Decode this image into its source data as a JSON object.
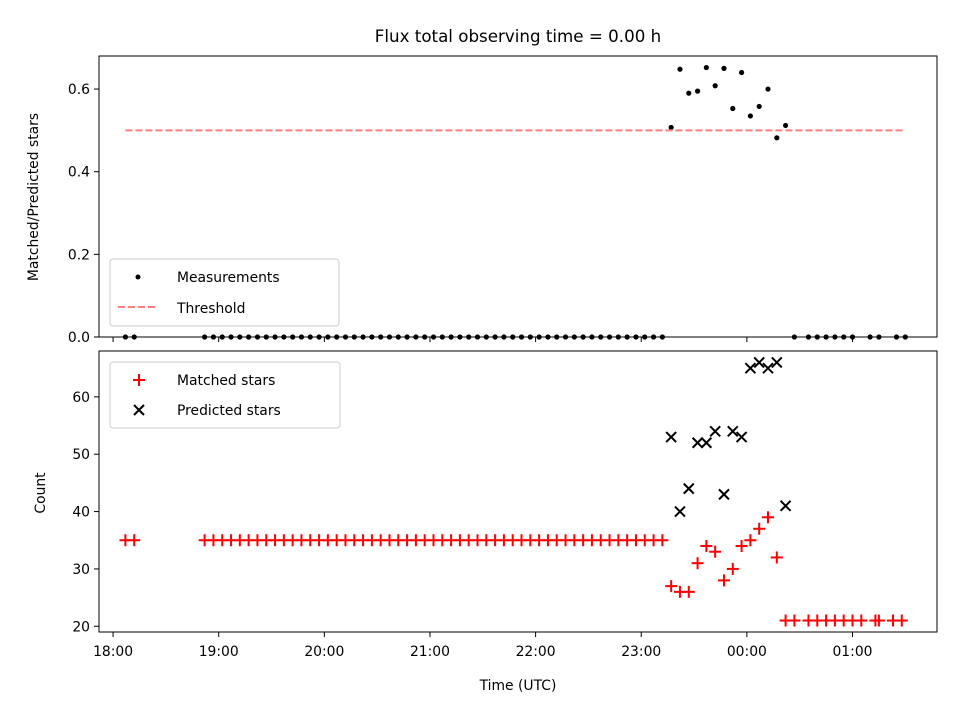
{
  "chart_data": [
    {
      "type": "scatter",
      "title": "Flux total observing time = 0.00 h",
      "ylabel": "Matched/Predicted stars",
      "xlabel": "",
      "ylim": [
        0,
        0.68
      ],
      "yticks": [
        "0.0",
        "0.2",
        "0.4",
        "0.6"
      ],
      "ytick_values": [
        0.0,
        0.2,
        0.4,
        0.6
      ],
      "xlim": [
        "17:52",
        "01:48"
      ],
      "legend_position": "lower-left",
      "series": [
        {
          "name": "Measurements",
          "marker": "dot",
          "color": "#000000",
          "points": [
            [
              "18:07",
              0
            ],
            [
              "18:12",
              0
            ],
            [
              "18:52",
              0
            ],
            [
              "18:57",
              0
            ],
            [
              "19:02",
              0
            ],
            [
              "19:07",
              0
            ],
            [
              "19:12",
              0
            ],
            [
              "19:17",
              0
            ],
            [
              "19:22",
              0
            ],
            [
              "19:27",
              0
            ],
            [
              "19:32",
              0
            ],
            [
              "19:37",
              0
            ],
            [
              "19:42",
              0
            ],
            [
              "19:47",
              0
            ],
            [
              "19:52",
              0
            ],
            [
              "19:57",
              0
            ],
            [
              "20:02",
              0
            ],
            [
              "20:07",
              0
            ],
            [
              "20:12",
              0
            ],
            [
              "20:17",
              0
            ],
            [
              "20:22",
              0
            ],
            [
              "20:27",
              0
            ],
            [
              "20:32",
              0
            ],
            [
              "20:37",
              0
            ],
            [
              "20:42",
              0
            ],
            [
              "20:47",
              0
            ],
            [
              "20:52",
              0
            ],
            [
              "20:57",
              0
            ],
            [
              "21:02",
              0
            ],
            [
              "21:07",
              0
            ],
            [
              "21:12",
              0
            ],
            [
              "21:17",
              0
            ],
            [
              "21:22",
              0
            ],
            [
              "21:27",
              0
            ],
            [
              "21:32",
              0
            ],
            [
              "21:37",
              0
            ],
            [
              "21:42",
              0
            ],
            [
              "21:47",
              0
            ],
            [
              "21:52",
              0
            ],
            [
              "21:57",
              0
            ],
            [
              "22:02",
              0
            ],
            [
              "22:07",
              0
            ],
            [
              "22:12",
              0
            ],
            [
              "22:17",
              0
            ],
            [
              "22:22",
              0
            ],
            [
              "22:27",
              0
            ],
            [
              "22:32",
              0
            ],
            [
              "22:37",
              0
            ],
            [
              "22:42",
              0
            ],
            [
              "22:47",
              0
            ],
            [
              "22:52",
              0
            ],
            [
              "22:57",
              0
            ],
            [
              "23:02",
              0
            ],
            [
              "23:07",
              0
            ],
            [
              "23:12",
              0
            ],
            [
              "23:17",
              0.507
            ],
            [
              "23:22",
              0.648
            ],
            [
              "23:27",
              0.59
            ],
            [
              "23:32",
              0.595
            ],
            [
              "23:37",
              0.652
            ],
            [
              "23:42",
              0.608
            ],
            [
              "23:47",
              0.65
            ],
            [
              "23:52",
              0.553
            ],
            [
              "23:57",
              0.64
            ],
            [
              "00:02",
              0.535
            ],
            [
              "00:07",
              0.558
            ],
            [
              "00:12",
              0.6
            ],
            [
              "00:17",
              0.482
            ],
            [
              "00:22",
              0.512
            ],
            [
              "00:27",
              0
            ],
            [
              "00:35",
              0
            ],
            [
              "00:40",
              0
            ],
            [
              "00:45",
              0
            ],
            [
              "00:50",
              0
            ],
            [
              "00:55",
              0
            ],
            [
              "01:00",
              0
            ],
            [
              "01:10",
              0
            ],
            [
              "01:15",
              0
            ],
            [
              "01:25",
              0
            ],
            [
              "01:30",
              0
            ]
          ]
        },
        {
          "name": "Threshold",
          "marker": "dashed-line",
          "color": "#ff7f7f",
          "points": [
            [
              "18:07",
              0.5
            ],
            [
              "01:30",
              0.5
            ]
          ]
        }
      ]
    },
    {
      "type": "scatter",
      "title": "",
      "ylabel": "Count",
      "xlabel": "Time (UTC)",
      "ylim": [
        19,
        68
      ],
      "yticks": [
        "20",
        "30",
        "40",
        "50",
        "60"
      ],
      "ytick_values": [
        20,
        30,
        40,
        50,
        60
      ],
      "xlim": [
        "17:52",
        "01:48"
      ],
      "xticks": [
        "18:00",
        "19:00",
        "20:00",
        "21:00",
        "22:00",
        "23:00",
        "00:00",
        "01:00"
      ],
      "legend_position": "upper-left",
      "series": [
        {
          "name": "Matched stars",
          "marker": "plus",
          "color": "#ff0000",
          "points": [
            [
              "18:07",
              35
            ],
            [
              "18:12",
              35
            ],
            [
              "18:52",
              35
            ],
            [
              "18:57",
              35
            ],
            [
              "19:02",
              35
            ],
            [
              "19:07",
              35
            ],
            [
              "19:12",
              35
            ],
            [
              "19:17",
              35
            ],
            [
              "19:22",
              35
            ],
            [
              "19:27",
              35
            ],
            [
              "19:32",
              35
            ],
            [
              "19:37",
              35
            ],
            [
              "19:42",
              35
            ],
            [
              "19:47",
              35
            ],
            [
              "19:52",
              35
            ],
            [
              "19:57",
              35
            ],
            [
              "20:02",
              35
            ],
            [
              "20:07",
              35
            ],
            [
              "20:12",
              35
            ],
            [
              "20:17",
              35
            ],
            [
              "20:22",
              35
            ],
            [
              "20:27",
              35
            ],
            [
              "20:32",
              35
            ],
            [
              "20:37",
              35
            ],
            [
              "20:42",
              35
            ],
            [
              "20:47",
              35
            ],
            [
              "20:52",
              35
            ],
            [
              "20:57",
              35
            ],
            [
              "21:02",
              35
            ],
            [
              "21:07",
              35
            ],
            [
              "21:12",
              35
            ],
            [
              "21:17",
              35
            ],
            [
              "21:22",
              35
            ],
            [
              "21:27",
              35
            ],
            [
              "21:32",
              35
            ],
            [
              "21:37",
              35
            ],
            [
              "21:42",
              35
            ],
            [
              "21:47",
              35
            ],
            [
              "21:52",
              35
            ],
            [
              "21:57",
              35
            ],
            [
              "22:02",
              35
            ],
            [
              "22:07",
              35
            ],
            [
              "22:12",
              35
            ],
            [
              "22:17",
              35
            ],
            [
              "22:22",
              35
            ],
            [
              "22:27",
              35
            ],
            [
              "22:32",
              35
            ],
            [
              "22:37",
              35
            ],
            [
              "22:42",
              35
            ],
            [
              "22:47",
              35
            ],
            [
              "22:52",
              35
            ],
            [
              "22:57",
              35
            ],
            [
              "23:02",
              35
            ],
            [
              "23:07",
              35
            ],
            [
              "23:12",
              35
            ],
            [
              "23:17",
              27
            ],
            [
              "23:22",
              26
            ],
            [
              "23:27",
              26
            ],
            [
              "23:32",
              31
            ],
            [
              "23:37",
              34
            ],
            [
              "23:42",
              33
            ],
            [
              "23:47",
              28
            ],
            [
              "23:52",
              30
            ],
            [
              "23:57",
              34
            ],
            [
              "00:02",
              35
            ],
            [
              "00:07",
              37
            ],
            [
              "00:12",
              39
            ],
            [
              "00:17",
              32
            ],
            [
              "00:22",
              21
            ],
            [
              "00:27",
              21
            ],
            [
              "00:35",
              21
            ],
            [
              "00:40",
              21
            ],
            [
              "00:45",
              21
            ],
            [
              "00:50",
              21
            ],
            [
              "00:55",
              21
            ],
            [
              "01:00",
              21
            ],
            [
              "01:05",
              21
            ],
            [
              "01:13",
              21
            ],
            [
              "01:15",
              21
            ],
            [
              "01:23",
              21
            ],
            [
              "01:28",
              21
            ]
          ]
        },
        {
          "name": "Predicted stars",
          "marker": "x",
          "color": "#000000",
          "points": [
            [
              "23:17",
              53
            ],
            [
              "23:22",
              40
            ],
            [
              "23:27",
              44
            ],
            [
              "23:32",
              52
            ],
            [
              "23:37",
              52
            ],
            [
              "23:42",
              54
            ],
            [
              "23:47",
              43
            ],
            [
              "23:52",
              54
            ],
            [
              "23:57",
              53
            ],
            [
              "00:02",
              65
            ],
            [
              "00:07",
              66
            ],
            [
              "00:12",
              65
            ],
            [
              "00:17",
              66
            ],
            [
              "00:22",
              41
            ]
          ]
        }
      ]
    }
  ]
}
